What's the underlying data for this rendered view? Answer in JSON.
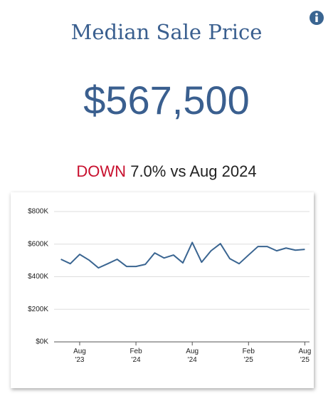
{
  "title": "Median Sale Price",
  "value": "$567,500",
  "change": {
    "direction": "DOWN",
    "text": "7.0% vs Aug 2024"
  },
  "chart_data": {
    "type": "line",
    "categories": [
      null,
      null,
      [
        "Aug",
        "'23"
      ],
      null,
      null,
      null,
      null,
      null,
      [
        "Feb",
        "'24"
      ],
      null,
      null,
      null,
      null,
      null,
      [
        "Aug",
        "'24"
      ],
      null,
      null,
      null,
      null,
      null,
      [
        "Feb",
        "'25"
      ],
      null,
      null,
      null,
      null,
      null,
      [
        "Aug",
        "'25"
      ]
    ],
    "series": [
      {
        "color": "#3a6591",
        "values": [
          507000,
          480000,
          537000,
          502000,
          454000,
          480000,
          507000,
          463000,
          463000,
          476000,
          546000,
          515000,
          533000,
          485000,
          610000,
          489000,
          559000,
          603000,
          511000,
          480000,
          533000,
          585000,
          585000,
          559000,
          576000,
          563000,
          567500
        ]
      }
    ],
    "ylim": [
      0,
      800000
    ],
    "yticks": [
      {
        "value": 0,
        "label": "$0K"
      },
      {
        "value": 200000,
        "label": "$200K"
      },
      {
        "value": 400000,
        "label": "$400K"
      },
      {
        "value": 600000,
        "label": "$600K"
      },
      {
        "value": 800000,
        "label": "$800K"
      }
    ],
    "grid": true
  }
}
